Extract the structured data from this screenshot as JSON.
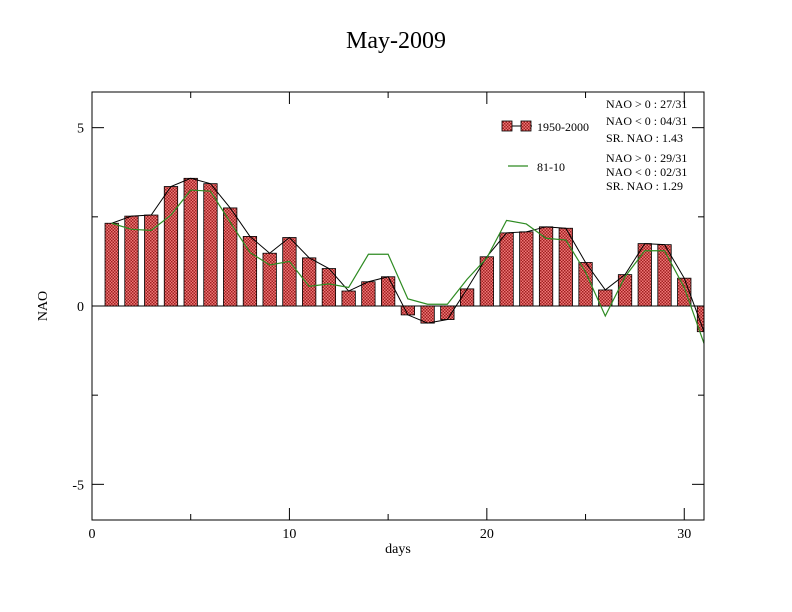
{
  "chart_data": {
    "type": "bar",
    "title": "May-2009",
    "xlabel": "days",
    "ylabel": "NAO",
    "xlim": [
      0,
      31
    ],
    "ylim": [
      -6,
      6
    ],
    "xticks": [
      0,
      10,
      20,
      30
    ],
    "yticks": [
      -5,
      0,
      5
    ],
    "x": [
      1,
      2,
      3,
      4,
      5,
      6,
      7,
      8,
      9,
      10,
      11,
      12,
      13,
      14,
      15,
      16,
      17,
      18,
      19,
      20,
      21,
      22,
      23,
      24,
      25,
      26,
      27,
      28,
      29,
      30,
      31
    ],
    "series": [
      {
        "name": "1950-2000",
        "kind": "bar+line",
        "color": "#e06666",
        "values": [
          2.32,
          2.52,
          2.55,
          3.35,
          3.58,
          3.43,
          2.75,
          1.95,
          1.48,
          1.92,
          1.35,
          1.05,
          0.42,
          0.68,
          0.82,
          -0.25,
          -0.48,
          -0.38,
          0.48,
          1.38,
          2.05,
          2.08,
          2.22,
          2.18,
          1.22,
          0.45,
          0.88,
          1.75,
          1.72,
          0.78,
          -0.72
        ]
      },
      {
        "name": "81-10",
        "kind": "line",
        "color": "#2e8b22",
        "values": [
          2.32,
          2.15,
          2.12,
          2.55,
          3.25,
          3.22,
          2.35,
          1.5,
          1.15,
          1.25,
          0.55,
          0.62,
          0.52,
          1.45,
          1.45,
          0.2,
          0.05,
          0.05,
          0.75,
          1.35,
          2.4,
          2.3,
          1.9,
          1.85,
          0.95,
          -0.28,
          0.82,
          1.55,
          1.55,
          0.52,
          -1.05
        ]
      }
    ],
    "annotations": {
      "stats_1950": [
        "NAO > 0 : 27/31",
        "NAO < 0 : 04/31",
        "SR. NAO :  1.43"
      ],
      "stats_8110": [
        "NAO > 0 : 29/31",
        "NAO < 0 : 02/31",
        "SR. NAO :  1.29"
      ]
    },
    "legend_position": "top-right",
    "grid": false
  }
}
